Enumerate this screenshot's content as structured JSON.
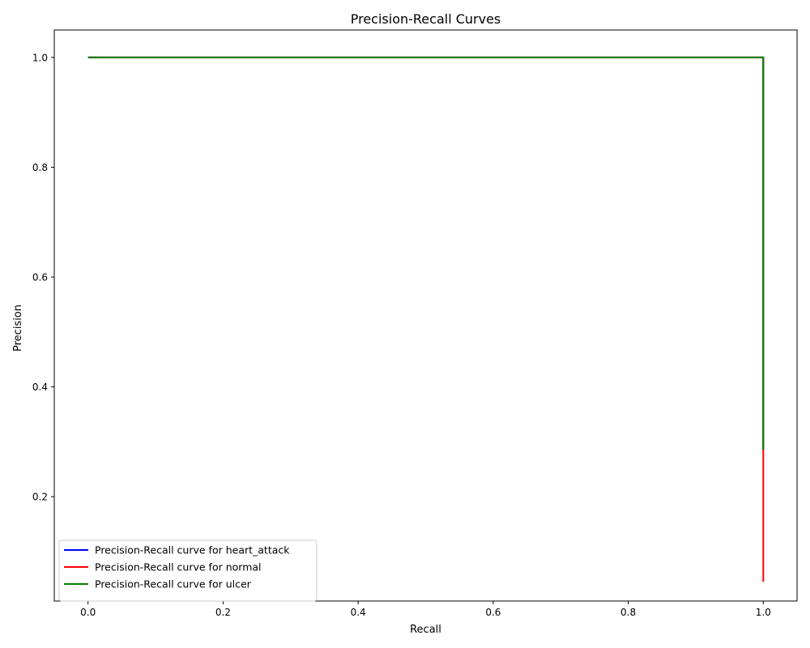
{
  "chart_data": {
    "type": "line",
    "title": "Precision-Recall Curves",
    "xlabel": "Recall",
    "ylabel": "Precision",
    "xlim": [
      -0.05,
      1.05
    ],
    "ylim": [
      0.01,
      1.05
    ],
    "xticks": [
      0.0,
      0.2,
      0.4,
      0.6,
      0.8,
      1.0
    ],
    "xtick_labels": [
      "0.0",
      "0.2",
      "0.4",
      "0.6",
      "0.8",
      "1.0"
    ],
    "yticks": [
      0.2,
      0.4,
      0.6,
      0.8,
      1.0
    ],
    "ytick_labels": [
      "0.2",
      "0.4",
      "0.6",
      "0.8",
      "1.0"
    ],
    "grid": false,
    "legend_position": "lower-left",
    "series": [
      {
        "name": "Precision-Recall curve for heart_attack",
        "color": "#0000ff",
        "x": [
          0.0,
          1.0,
          1.0
        ],
        "y": [
          1.0,
          1.0,
          0.286
        ]
      },
      {
        "name": "Precision-Recall curve for normal",
        "color": "#ff0000",
        "x": [
          0.0,
          1.0,
          1.0
        ],
        "y": [
          1.0,
          1.0,
          0.045
        ]
      },
      {
        "name": "Precision-Recall curve for ulcer",
        "color": "#008000",
        "x": [
          0.0,
          1.0,
          1.0
        ],
        "y": [
          1.0,
          1.0,
          0.286
        ]
      }
    ]
  }
}
